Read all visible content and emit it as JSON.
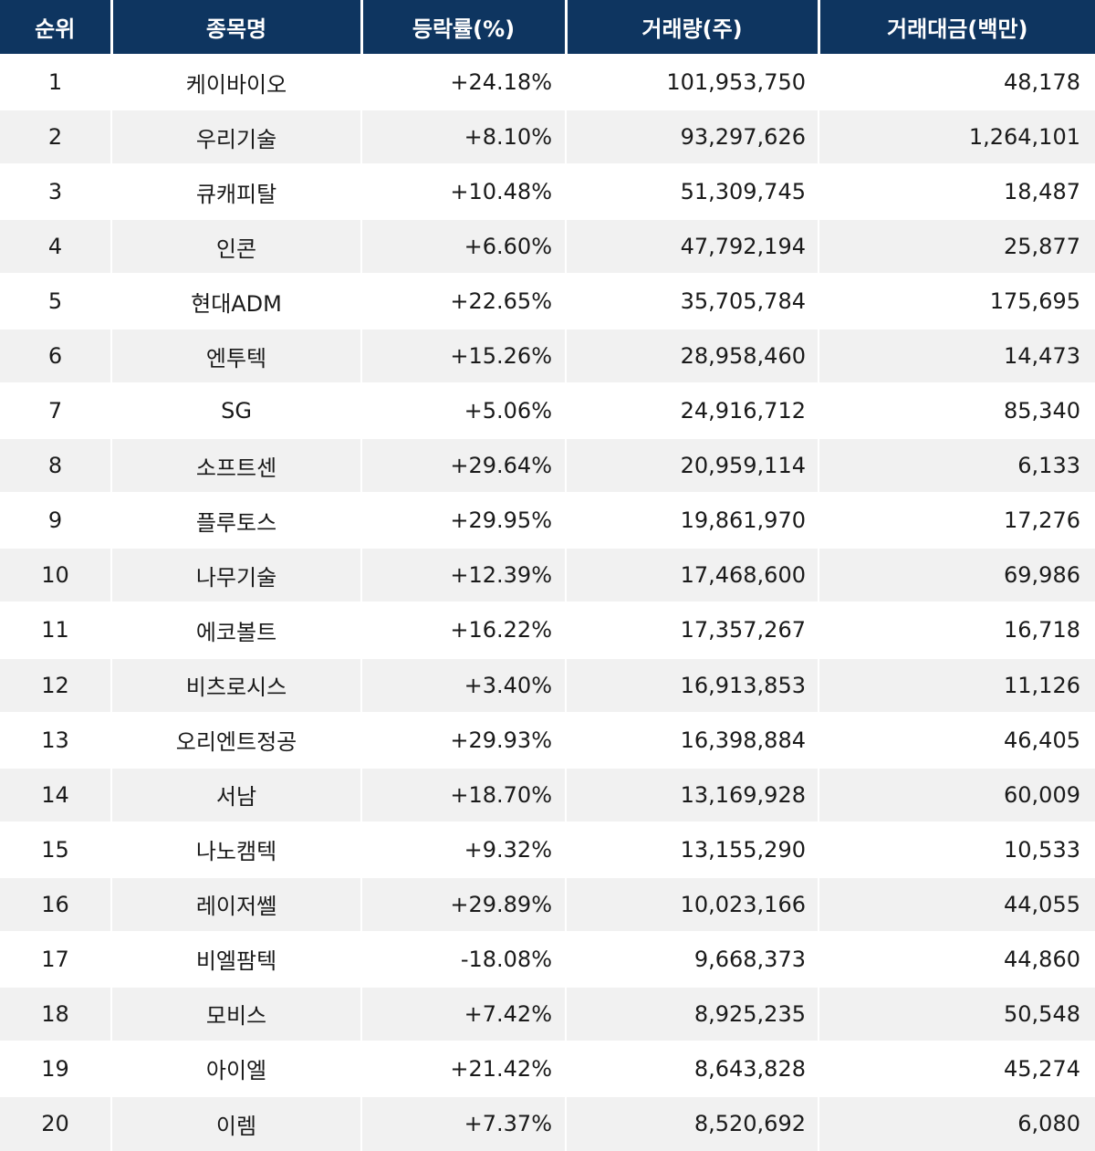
{
  "colors": {
    "header_bg": "#0e3560",
    "header_text": "#ffffff",
    "row_bg": "#ffffff",
    "row_alt_bg": "#f1f1f1",
    "body_text": "#1a1a1a",
    "grid": "#ffffff"
  },
  "chart_data": {
    "type": "table",
    "columns": [
      "순위",
      "종목명",
      "등락률(%)",
      "거래량(주)",
      "거래대금(백만)"
    ],
    "rows": [
      [
        "1",
        "케이바이오",
        "+24.18%",
        "101,953,750",
        "48,178"
      ],
      [
        "2",
        "우리기술",
        "+8.10%",
        "93,297,626",
        "1,264,101"
      ],
      [
        "3",
        "큐캐피탈",
        "+10.48%",
        "51,309,745",
        "18,487"
      ],
      [
        "4",
        "인콘",
        "+6.60%",
        "47,792,194",
        "25,877"
      ],
      [
        "5",
        "현대ADM",
        "+22.65%",
        "35,705,784",
        "175,695"
      ],
      [
        "6",
        "엔투텍",
        "+15.26%",
        "28,958,460",
        "14,473"
      ],
      [
        "7",
        "SG",
        "+5.06%",
        "24,916,712",
        "85,340"
      ],
      [
        "8",
        "소프트센",
        "+29.64%",
        "20,959,114",
        "6,133"
      ],
      [
        "9",
        "플루토스",
        "+29.95%",
        "19,861,970",
        "17,276"
      ],
      [
        "10",
        "나무기술",
        "+12.39%",
        "17,468,600",
        "69,986"
      ],
      [
        "11",
        "에코볼트",
        "+16.22%",
        "17,357,267",
        "16,718"
      ],
      [
        "12",
        "비츠로시스",
        "+3.40%",
        "16,913,853",
        "11,126"
      ],
      [
        "13",
        "오리엔트정공",
        "+29.93%",
        "16,398,884",
        "46,405"
      ],
      [
        "14",
        "서남",
        "+18.70%",
        "13,169,928",
        "60,009"
      ],
      [
        "15",
        "나노캠텍",
        "+9.32%",
        "13,155,290",
        "10,533"
      ],
      [
        "16",
        "레이저쎌",
        "+29.89%",
        "10,023,166",
        "44,055"
      ],
      [
        "17",
        "비엘팜텍",
        "-18.08%",
        "9,668,373",
        "44,860"
      ],
      [
        "18",
        "모비스",
        "+7.42%",
        "8,925,235",
        "50,548"
      ],
      [
        "19",
        "아이엘",
        "+21.42%",
        "8,643,828",
        "45,274"
      ],
      [
        "20",
        "이렘",
        "+7.37%",
        "8,520,692",
        "6,080"
      ]
    ]
  }
}
